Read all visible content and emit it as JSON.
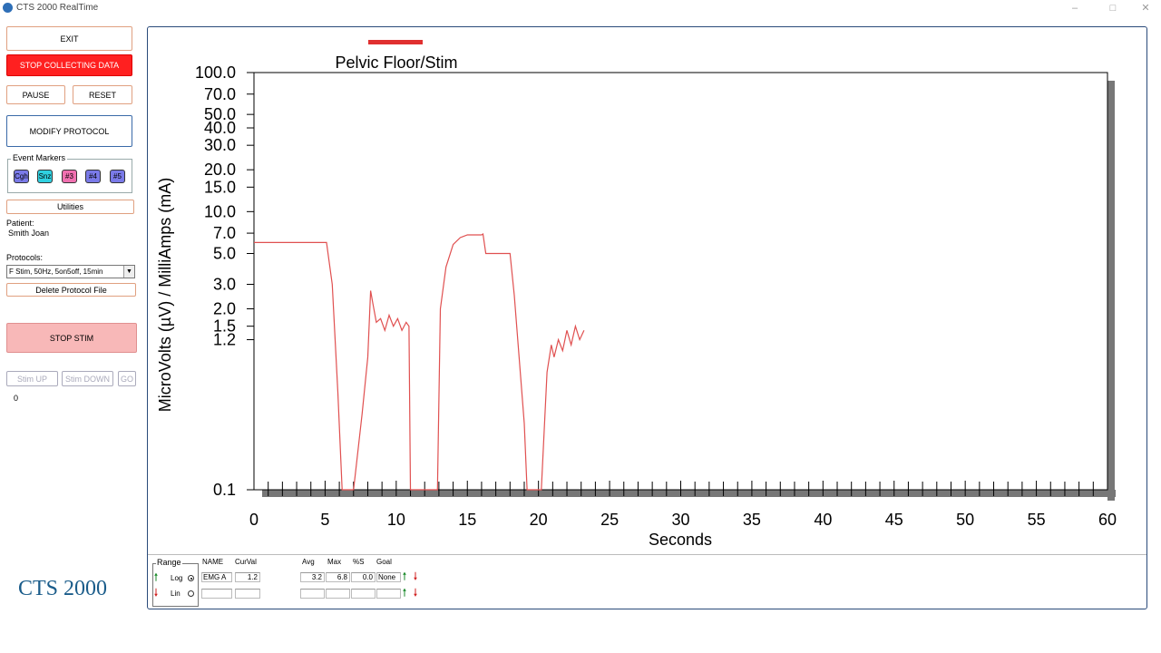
{
  "window": {
    "title": "CTS 2000 RealTime",
    "controls": [
      "–",
      "□",
      "✕"
    ]
  },
  "left_panel": {
    "exit_label": "EXIT",
    "stop_collecting_label": "STOP COLLECTING DATA",
    "pause_label": "PAUSE",
    "reset_label": "RESET",
    "modify_protocol_label": "MODIFY PROTOCOL",
    "event_markers": {
      "title": "Event Markers",
      "items": [
        {
          "label": "Cgh",
          "color": "#7a7ae8"
        },
        {
          "label": "Snz",
          "color": "#30d0e0"
        },
        {
          "label": "#3",
          "color": "#f070b0"
        },
        {
          "label": "#4",
          "color": "#7a7ae8"
        },
        {
          "label": "#5",
          "color": "#7a7ae8"
        }
      ]
    },
    "utilities_label": "Utilities",
    "patient_label": "Patient:",
    "patient_name": "Smith Joan",
    "protocols_label": "Protocols:",
    "protocol_selected": "F Stim, 50Hz, 5on5off, 15min",
    "delete_protocol_label": "Delete Protocol File",
    "stop_stim_label": "STOP STIM",
    "stim_up_label": "Stim UP",
    "stim_down_label": "Stim DOWN",
    "go_label": "GO",
    "stim_value": "0",
    "brand": "CTS 2000"
  },
  "chart_data": {
    "type": "line",
    "title": "Pelvic Floor/Stim",
    "xlabel": "Seconds",
    "ylabel": "MicroVolts (µV) / MilliAmps (mA)",
    "y_scale": "log",
    "xlim": [
      0,
      60
    ],
    "ylim": [
      0.1,
      100
    ],
    "x_ticks": [
      "0",
      "5",
      "10",
      "15",
      "20",
      "25",
      "30",
      "35",
      "40",
      "45",
      "50",
      "55",
      "60"
    ],
    "y_ticks": [
      "100.0",
      "70.0",
      "50.0",
      "40.0",
      "30.0",
      "20.0",
      "15.0",
      "10.0",
      "7.0",
      "5.0",
      "3.0",
      "2.0",
      "1.5",
      "1.2",
      "0.1"
    ],
    "legend_color": "#e03030",
    "series": [
      {
        "color": "#e05050",
        "x": [
          0,
          5.1,
          5.5,
          5.9,
          6.2,
          7.0,
          7.6,
          8.0,
          8.2,
          8.35,
          8.6,
          8.9,
          9.2,
          9.5,
          9.8,
          10.1,
          10.4,
          10.7,
          10.9,
          11.0,
          12.9,
          13.1,
          13.5,
          14.0,
          14.5,
          15.0,
          15.6,
          16.0,
          16.1,
          16.3,
          18.0,
          18.3,
          19.0,
          19.2,
          20.2,
          20.6,
          20.9,
          21.1,
          21.4,
          21.7,
          22.0,
          22.3,
          22.6,
          22.9,
          23.2
        ],
        "y": [
          6.0,
          6.0,
          3.0,
          0.5,
          0.1,
          0.1,
          0.35,
          0.9,
          2.7,
          2.2,
          1.6,
          1.7,
          1.4,
          1.8,
          1.5,
          1.7,
          1.4,
          1.6,
          1.5,
          0.1,
          0.1,
          2.0,
          4.0,
          5.8,
          6.5,
          6.8,
          6.8,
          6.8,
          6.9,
          5.0,
          5.0,
          2.5,
          0.3,
          0.1,
          0.1,
          0.7,
          1.1,
          0.9,
          1.2,
          1.0,
          1.4,
          1.1,
          1.5,
          1.2,
          1.4
        ]
      }
    ],
    "grid": false,
    "legend": "top-left"
  },
  "bottom_table": {
    "range_label": "Range",
    "log_label": "Log",
    "lin_label": "Lin",
    "headers": {
      "name": "NAME",
      "curval": "CurVal",
      "avg": "Avg",
      "max": "Max",
      "pct": "%S",
      "goal": "Goal"
    },
    "rows": [
      {
        "name": "EMG A",
        "curval": "1.2",
        "avg": "3.2",
        "max": "6.8",
        "pct": "0.0",
        "goal": "None"
      },
      {
        "name": "",
        "curval": "",
        "avg": "",
        "max": "",
        "pct": "",
        "goal": ""
      }
    ],
    "colors": {
      "up_arrow": "#1a8a2a",
      "down_arrow": "#d02020"
    }
  }
}
